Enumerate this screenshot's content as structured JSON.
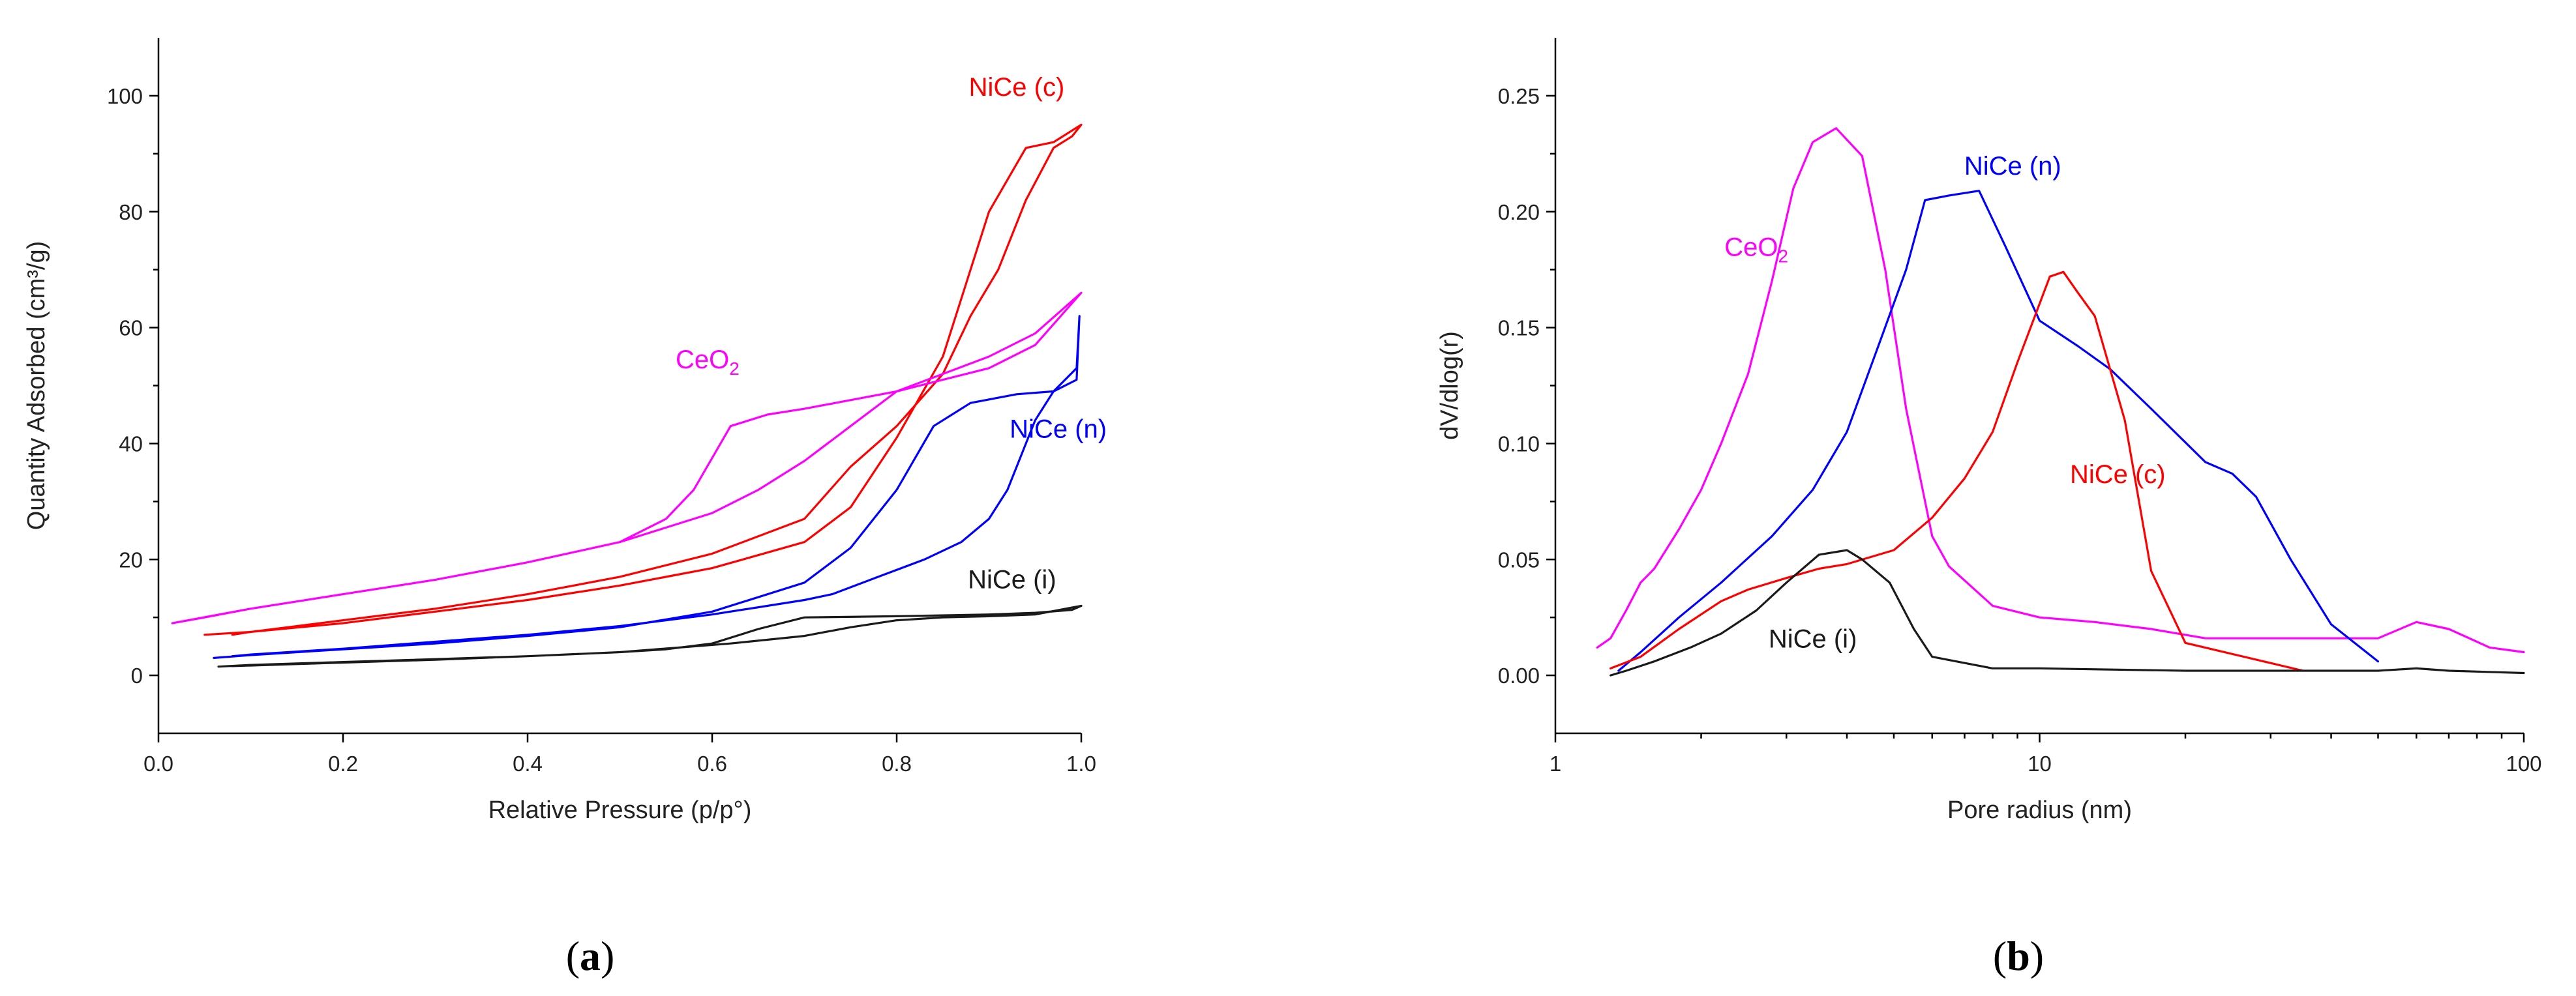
{
  "chart_data": [
    {
      "type": "line",
      "panel_label": "a",
      "xlabel": "Relative Pressure (p/p°)",
      "ylabel": "Quantity Adsorbed (cm³/g)",
      "xlim": [
        0.0,
        1.0
      ],
      "ylim": [
        -10,
        110
      ],
      "xticks": [
        0.0,
        0.2,
        0.4,
        0.6,
        0.8,
        1.0
      ],
      "xtick_labels": [
        "0.0",
        "0.2",
        "0.4",
        "0.6",
        "0.8",
        "1.0"
      ],
      "yticks": [
        0,
        20,
        40,
        60,
        80,
        100
      ],
      "ytick_labels": [
        "0",
        "20",
        "40",
        "60",
        "80",
        "100"
      ],
      "series": [
        {
          "name": "NiCe (c)",
          "label": "NiCe (c)",
          "color": "#ff0000",
          "label_at": [
            0.93,
            100
          ],
          "x": [
            0.05,
            0.1,
            0.2,
            0.3,
            0.4,
            0.5,
            0.6,
            0.7,
            0.75,
            0.8,
            0.85,
            0.9,
            0.94,
            0.97,
            1.0,
            0.99,
            0.97,
            0.94,
            0.91,
            0.88,
            0.85,
            0.8,
            0.75,
            0.7,
            0.6,
            0.5,
            0.4,
            0.3,
            0.2,
            0.1,
            0.08
          ],
          "y": [
            7,
            7.5,
            9,
            11,
            13,
            15.5,
            18.5,
            23,
            29,
            41,
            55,
            80,
            91,
            92,
            95,
            93,
            91,
            82,
            70,
            62,
            52,
            43,
            36,
            27,
            21,
            17,
            14,
            11.5,
            9.5,
            7.5,
            7
          ]
        },
        {
          "name": "CeO2",
          "label": "CeO",
          "label_sub": "2",
          "color": "#ff00ff",
          "label_at": [
            0.595,
            53
          ],
          "x": [
            0.015,
            0.05,
            0.1,
            0.2,
            0.3,
            0.4,
            0.5,
            0.55,
            0.58,
            0.62,
            0.66,
            0.7,
            0.8,
            0.9,
            0.95,
            1.0,
            0.95,
            0.9,
            0.8,
            0.75,
            0.7,
            0.65,
            0.6,
            0.5,
            0.4,
            0.3,
            0.2,
            0.1,
            0.015
          ],
          "y": [
            9,
            10,
            11.5,
            14,
            16.5,
            19.5,
            23,
            27,
            32,
            43,
            45,
            46,
            49,
            53,
            57,
            66,
            59,
            55,
            49,
            43,
            37,
            32,
            28,
            23,
            19.5,
            16.5,
            14,
            11.5,
            9
          ]
        },
        {
          "name": "NiCe (n)",
          "label": "NiCe (n)",
          "color": "#0000ff",
          "label_at": [
            0.975,
            41
          ],
          "x": [
            0.06,
            0.1,
            0.2,
            0.3,
            0.4,
            0.5,
            0.6,
            0.7,
            0.75,
            0.8,
            0.84,
            0.88,
            0.93,
            0.97,
            0.995,
            0.998,
            0.995,
            0.97,
            0.95,
            0.92,
            0.9,
            0.87,
            0.83,
            0.78,
            0.73,
            0.7,
            0.6,
            0.5,
            0.4,
            0.3,
            0.2,
            0.1,
            0.08
          ],
          "y": [
            3,
            3.5,
            4.5,
            5.5,
            6.8,
            8.3,
            11,
            16,
            22,
            32,
            43,
            47,
            48.5,
            49,
            51,
            62,
            53,
            49,
            44,
            32,
            27,
            23,
            20,
            17,
            14,
            13,
            10.5,
            8.5,
            7,
            5.8,
            4.6,
            3.6,
            3.3
          ]
        },
        {
          "name": "NiCe (i)",
          "label": "NiCe (i)",
          "color": "#1a1a1a",
          "label_at": [
            0.925,
            15
          ],
          "x": [
            0.065,
            0.1,
            0.2,
            0.3,
            0.4,
            0.5,
            0.55,
            0.6,
            0.65,
            0.7,
            0.8,
            0.9,
            0.95,
            0.99,
            1.0,
            0.95,
            0.9,
            0.85,
            0.8,
            0.75,
            0.7,
            0.62,
            0.5,
            0.4,
            0.3,
            0.2,
            0.1,
            0.08
          ],
          "y": [
            1.5,
            1.8,
            2.3,
            2.8,
            3.3,
            4,
            4.5,
            5.5,
            8,
            10,
            10.2,
            10.5,
            10.8,
            11.3,
            12,
            10.5,
            10.2,
            10,
            9.5,
            8.3,
            6.8,
            5.5,
            4,
            3.3,
            2.7,
            2.2,
            1.7,
            1.6
          ]
        }
      ]
    },
    {
      "type": "line",
      "panel_label": "b",
      "xscale": "log",
      "xlabel": "Pore radius (nm)",
      "ylabel": "dV/dlog(r)",
      "xlim": [
        1,
        100
      ],
      "ylim": [
        -0.025,
        0.275
      ],
      "xticks": [
        1,
        10,
        100
      ],
      "xtick_labels": [
        "1",
        "10",
        "100"
      ],
      "yticks": [
        0.0,
        0.05,
        0.1,
        0.15,
        0.2,
        0.25
      ],
      "ytick_labels": [
        "0.00",
        "0.05",
        "0.10",
        "0.15",
        "0.20",
        "0.25"
      ],
      "series": [
        {
          "name": "CeO2",
          "label": "CeO",
          "label_sub": "2",
          "color": "#ff00ff",
          "label_at": [
            2.6,
            0.181
          ],
          "x": [
            1.22,
            1.3,
            1.4,
            1.5,
            1.6,
            1.8,
            2.0,
            2.2,
            2.5,
            2.8,
            3.1,
            3.4,
            3.8,
            4.3,
            4.8,
            5.3,
            6.0,
            6.5,
            8.0,
            10,
            13,
            17,
            22,
            30,
            50,
            60,
            70,
            85,
            100
          ],
          "y": [
            0.012,
            0.016,
            0.028,
            0.04,
            0.046,
            0.063,
            0.08,
            0.1,
            0.13,
            0.17,
            0.21,
            0.23,
            0.236,
            0.224,
            0.175,
            0.115,
            0.06,
            0.047,
            0.03,
            0.025,
            0.023,
            0.02,
            0.016,
            0.016,
            0.016,
            0.023,
            0.02,
            0.012,
            0.01
          ]
        },
        {
          "name": "NiCe (n)",
          "label": "NiCe (n)",
          "color": "#0000ff",
          "label_at": [
            8.8,
            0.216
          ],
          "x": [
            1.35,
            1.5,
            1.8,
            2.2,
            2.8,
            3.4,
            4.0,
            4.7,
            5.3,
            5.8,
            6.5,
            7.5,
            8.5,
            10,
            12,
            14,
            17,
            22,
            25,
            28,
            33,
            40,
            50
          ],
          "y": [
            0.002,
            0.01,
            0.025,
            0.04,
            0.06,
            0.08,
            0.105,
            0.145,
            0.175,
            0.205,
            0.207,
            0.209,
            0.185,
            0.153,
            0.142,
            0.132,
            0.115,
            0.092,
            0.087,
            0.077,
            0.05,
            0.022,
            0.006
          ]
        },
        {
          "name": "NiCe (c)",
          "label": "NiCe (c)",
          "color": "#ff0000",
          "label_at": [
            14.5,
            0.083
          ],
          "x": [
            1.3,
            1.5,
            1.8,
            2.2,
            2.5,
            3.0,
            3.5,
            4.0,
            5.0,
            6.0,
            7.0,
            8.0,
            9.0,
            10.5,
            11.2,
            12.0,
            13.0,
            15.0,
            17.0,
            20.0,
            35.0
          ],
          "y": [
            0.003,
            0.008,
            0.02,
            0.032,
            0.037,
            0.042,
            0.046,
            0.048,
            0.054,
            0.068,
            0.085,
            0.105,
            0.135,
            0.172,
            0.174,
            0.165,
            0.155,
            0.11,
            0.045,
            0.014,
            0.002
          ]
        },
        {
          "name": "NiCe (i)",
          "label": "NiCe (i)",
          "color": "#1a1a1a",
          "label_at": [
            3.4,
            0.012
          ],
          "x": [
            1.3,
            1.4,
            1.6,
            1.9,
            2.2,
            2.6,
            3.0,
            3.5,
            4.0,
            4.3,
            4.9,
            5.5,
            6.0,
            8.0,
            10,
            20,
            50,
            60,
            70,
            100
          ],
          "y": [
            0.0,
            0.002,
            0.006,
            0.012,
            0.018,
            0.028,
            0.04,
            0.052,
            0.054,
            0.05,
            0.04,
            0.02,
            0.008,
            0.003,
            0.003,
            0.002,
            0.002,
            0.003,
            0.002,
            0.001
          ]
        }
      ]
    }
  ]
}
